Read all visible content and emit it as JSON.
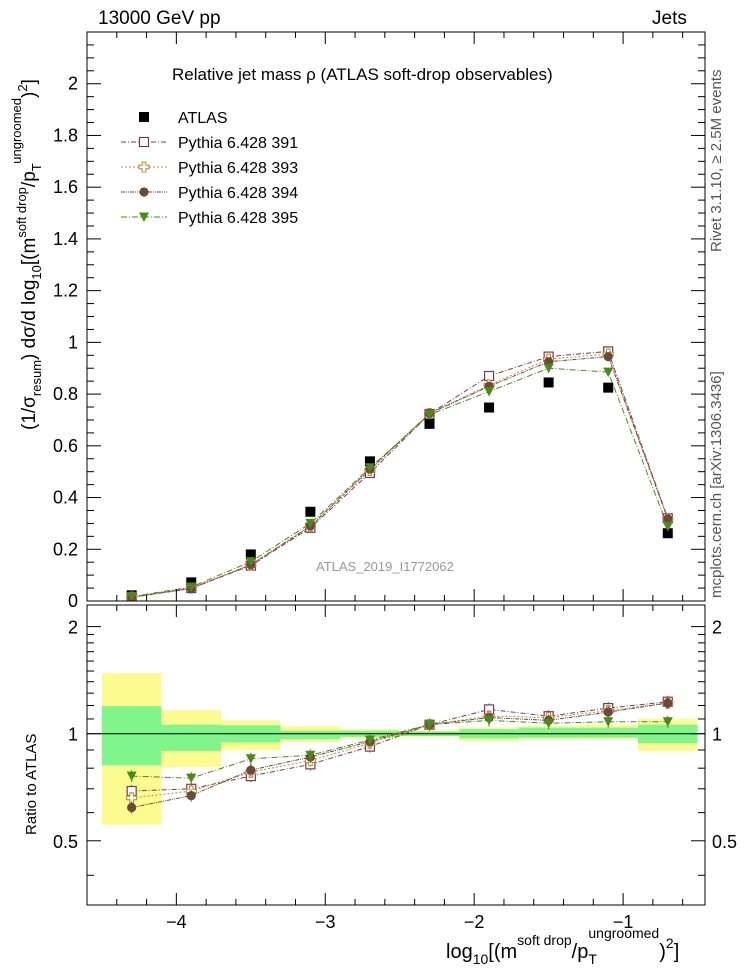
{
  "header": {
    "left": "13000 GeV pp",
    "right": "Jets",
    "side_top": "Rivet 3.1.10, ≥ 2.5M events",
    "side_bottom": "mcplots.cern.ch [arXiv:1306.3436]"
  },
  "chart_data": {
    "type": "scatter",
    "title": "Relative jet mass  ρ (ATLAS soft-drop observables)",
    "watermark": "ATLAS_2019_I1772062",
    "xlabel_tex": "log10[(m^soft drop/p_T^ungroomed)^2]",
    "ylabel_tex": "(1/σ_resum) dσ/d log10[(m^soft drop/p_T^ungroomed)^2]",
    "ratio_ylabel": "Ratio to ATLAS",
    "xlim": [
      -4.6,
      -0.45
    ],
    "ylim": [
      0,
      2.2
    ],
    "ratio_ylim": [
      0.33,
      2.3
    ],
    "x_ticks": [
      "−4",
      "−3",
      "−2",
      "−1"
    ],
    "y_ticks": [
      "0",
      "0.2",
      "0.4",
      "0.6",
      "0.8",
      "1",
      "1.2",
      "1.4",
      "1.6",
      "1.8",
      "2"
    ],
    "ratio_y_ticks": [
      "0.5",
      "1",
      "2"
    ],
    "bin_edges": [
      -4.5,
      -4.1,
      -3.7,
      -3.3,
      -2.9,
      -2.5,
      -2.1,
      -1.7,
      -1.3,
      -0.9,
      -0.5
    ],
    "x": [
      -4.3,
      -3.9,
      -3.5,
      -3.1,
      -2.7,
      -2.3,
      -1.9,
      -1.5,
      -1.1,
      -0.7
    ],
    "legend_position": "top-left",
    "series": [
      {
        "name": "ATLAS",
        "marker": "filled-square",
        "color": "#000000",
        "values": [
          0.022,
          0.072,
          0.18,
          0.345,
          0.54,
          0.685,
          0.748,
          0.845,
          0.825,
          0.262
        ]
      },
      {
        "name": "Pythia 6.428 391",
        "marker": "open-square",
        "color": "#7a3b4a",
        "values": [
          0.015,
          0.05,
          0.137,
          0.283,
          0.495,
          0.723,
          0.87,
          0.945,
          0.965,
          0.32
        ],
        "ratio": [
          0.69,
          0.7,
          0.76,
          0.82,
          0.92,
          1.06,
          1.17,
          1.12,
          1.18,
          1.23
        ]
      },
      {
        "name": "Pythia 6.428 393",
        "marker": "open-cross",
        "color": "#c08a3a",
        "values": [
          0.015,
          0.05,
          0.14,
          0.288,
          0.505,
          0.725,
          0.835,
          0.935,
          0.955,
          0.318
        ],
        "ratio": [
          0.66,
          0.69,
          0.78,
          0.84,
          0.94,
          1.06,
          1.12,
          1.11,
          1.16,
          1.22
        ]
      },
      {
        "name": "Pythia 6.428 394",
        "marker": "filled-circle",
        "color": "#6b4a3a",
        "values": [
          0.014,
          0.048,
          0.14,
          0.29,
          0.51,
          0.725,
          0.83,
          0.925,
          0.945,
          0.318
        ],
        "ratio": [
          0.62,
          0.67,
          0.79,
          0.86,
          0.95,
          1.06,
          1.11,
          1.09,
          1.15,
          1.22
        ]
      },
      {
        "name": "Pythia 6.428 395",
        "marker": "filled-triangle-down",
        "color": "#4a8a1a",
        "values": [
          0.017,
          0.054,
          0.152,
          0.3,
          0.515,
          0.72,
          0.81,
          0.9,
          0.885,
          0.288
        ],
        "ratio": [
          0.76,
          0.75,
          0.85,
          0.87,
          0.96,
          1.06,
          1.09,
          1.07,
          1.08,
          1.08
        ]
      }
    ],
    "ratio_band_inner": [
      [
        0.815,
        1.195
      ],
      [
        0.895,
        1.06
      ],
      [
        0.945,
        1.055
      ],
      [
        0.965,
        1.02
      ],
      [
        0.98,
        1.02
      ],
      [
        0.985,
        1.015
      ],
      [
        0.97,
        1.03
      ],
      [
        0.975,
        1.04
      ],
      [
        0.975,
        1.04
      ],
      [
        0.94,
        1.06
      ]
    ],
    "ratio_band_outer": [
      [
        0.555,
        1.48
      ],
      [
        0.805,
        1.165
      ],
      [
        0.9,
        1.09
      ],
      [
        0.95,
        1.05
      ],
      [
        0.97,
        1.03
      ],
      [
        0.98,
        1.02
      ],
      [
        0.955,
        1.04
      ],
      [
        0.965,
        1.05
      ],
      [
        0.965,
        1.06
      ],
      [
        0.895,
        1.1
      ]
    ],
    "colors": {
      "band_inner": "#7ff58a",
      "band_outer": "#fbfb8f"
    }
  }
}
